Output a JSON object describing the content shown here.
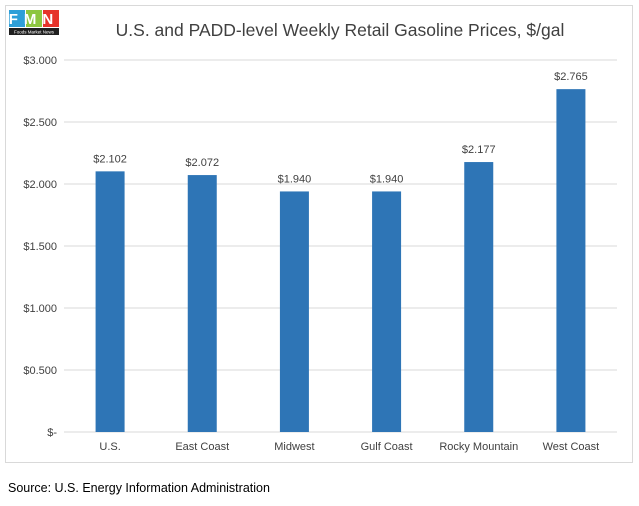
{
  "logo": {
    "text": "FMN",
    "caption": "Foods Market News",
    "colors": [
      "#2e9fd8",
      "#8dc63f",
      "#e6332a"
    ]
  },
  "chart_data": {
    "type": "bar",
    "title": "U.S. and PADD-level Weekly Retail Gasoline Prices, $/gal",
    "categories": [
      "U.S.",
      "East Coast",
      "Midwest",
      "Gulf Coast",
      "Rocky Mountain",
      "West Coast"
    ],
    "values": [
      2.102,
      2.072,
      1.94,
      1.94,
      2.177,
      2.765
    ],
    "data_labels": [
      "$2.102",
      "$2.072",
      "$1.940",
      "$1.940",
      "$2.177",
      "$2.765"
    ],
    "ylim": [
      0,
      3
    ],
    "yticks": [
      0,
      0.5,
      1,
      1.5,
      2,
      2.5,
      3
    ],
    "ytick_labels": [
      "$-",
      "$0.500",
      "$1.000",
      "$1.500",
      "$2.000",
      "$2.500",
      "$3.000"
    ],
    "xlabel": "",
    "ylabel": "",
    "grid": true,
    "bar_color": "#2e75b6",
    "grid_color": "#d9d9d9"
  },
  "source": "Source: U.S. Energy Information Administration"
}
